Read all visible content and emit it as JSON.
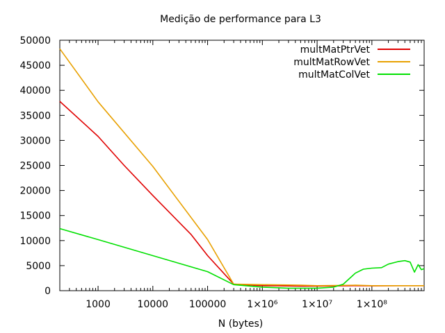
{
  "chart_data": {
    "type": "line",
    "title": "Medição de performance para L3",
    "xlabel": "N (bytes)",
    "ylabel": "",
    "x_scale": "log",
    "xlim": [
      200,
      900000000
    ],
    "ylim": [
      0,
      50000
    ],
    "x_ticks": [
      {
        "value": 1000,
        "label": "1000"
      },
      {
        "value": 10000,
        "label": "10000"
      },
      {
        "value": 100000,
        "label": "100000"
      },
      {
        "value": 1000000,
        "label": "1×10⁶"
      },
      {
        "value": 10000000,
        "label": "1×10⁷"
      },
      {
        "value": 100000000,
        "label": "1×10⁸"
      }
    ],
    "y_ticks": [
      {
        "value": 0,
        "label": "0"
      },
      {
        "value": 5000,
        "label": "5000"
      },
      {
        "value": 10000,
        "label": "10000"
      },
      {
        "value": 15000,
        "label": "15000"
      },
      {
        "value": 20000,
        "label": "20000"
      },
      {
        "value": 25000,
        "label": "25000"
      },
      {
        "value": 30000,
        "label": "30000"
      },
      {
        "value": 35000,
        "label": "35000"
      },
      {
        "value": 40000,
        "label": "40000"
      },
      {
        "value": 45000,
        "label": "45000"
      },
      {
        "value": 50000,
        "label": "50000"
      }
    ],
    "grid": false,
    "legend_position": "top-right",
    "series": [
      {
        "name": "multMatPtrVet",
        "color": "#e00000",
        "points": [
          [
            200,
            37800
          ],
          [
            1000,
            30800
          ],
          [
            3000,
            25000
          ],
          [
            10000,
            19000
          ],
          [
            50000,
            11200
          ],
          [
            100000,
            7000
          ],
          [
            300000,
            1300
          ],
          [
            1000000,
            1000
          ],
          [
            5000000,
            900
          ],
          [
            10000000,
            900
          ],
          [
            50000000,
            1000
          ],
          [
            100000000,
            950
          ],
          [
            300000000,
            1000
          ],
          [
            900000000,
            1000
          ]
        ]
      },
      {
        "name": "multMatRowVet",
        "color": "#e8a000",
        "points": [
          [
            200,
            48300
          ],
          [
            1000,
            37700
          ],
          [
            10000,
            24800
          ],
          [
            100000,
            10200
          ],
          [
            300000,
            1300
          ],
          [
            1000000,
            1200
          ],
          [
            5000000,
            1100
          ],
          [
            10000000,
            1000
          ],
          [
            50000000,
            1100
          ],
          [
            100000000,
            1000
          ],
          [
            300000000,
            1000
          ],
          [
            900000000,
            1000
          ]
        ]
      },
      {
        "name": "multMatColVet",
        "color": "#00e000",
        "points": [
          [
            200,
            12400
          ],
          [
            1000,
            10200
          ],
          [
            10000,
            7000
          ],
          [
            100000,
            3800
          ],
          [
            300000,
            1200
          ],
          [
            1000000,
            700
          ],
          [
            3000000,
            500
          ],
          [
            10000000,
            500
          ],
          [
            20000000,
            700
          ],
          [
            30000000,
            1300
          ],
          [
            50000000,
            3500
          ],
          [
            70000000,
            4300
          ],
          [
            100000000,
            4500
          ],
          [
            150000000,
            4600
          ],
          [
            200000000,
            5300
          ],
          [
            300000000,
            5800
          ],
          [
            400000000,
            6000
          ],
          [
            500000000,
            5700
          ],
          [
            600000000,
            3700
          ],
          [
            700000000,
            5200
          ],
          [
            800000000,
            4200
          ],
          [
            900000000,
            4400
          ]
        ]
      }
    ]
  }
}
